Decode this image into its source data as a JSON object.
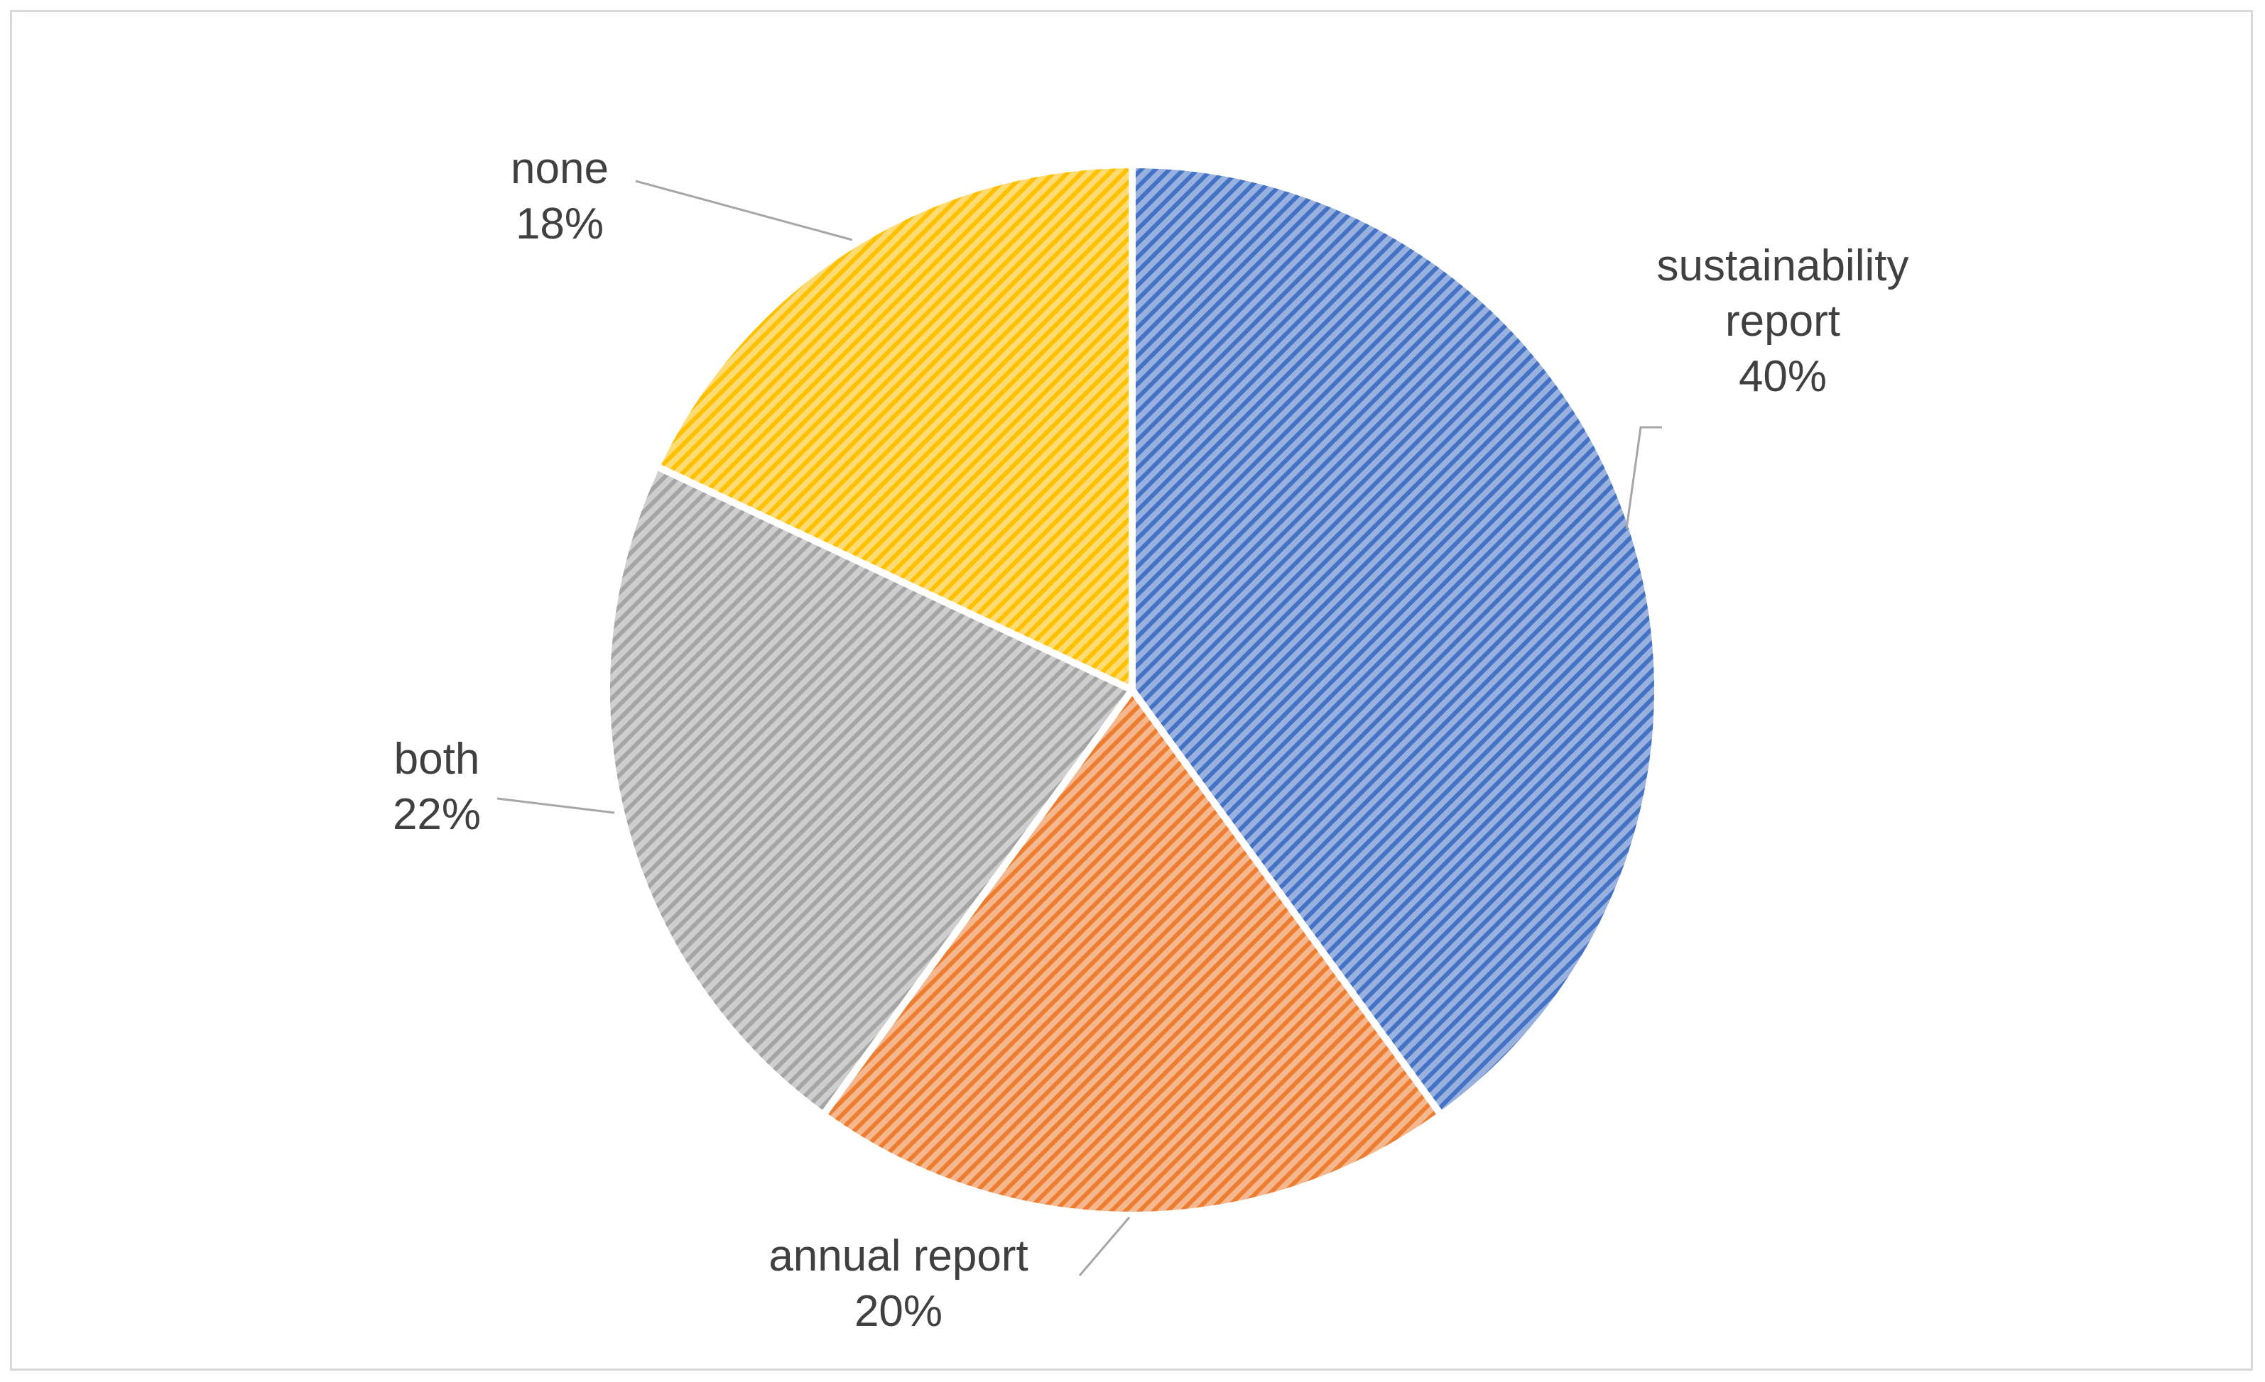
{
  "chart_data": {
    "type": "pie",
    "title": "",
    "start_angle_deg": 0,
    "direction": "clockwise",
    "legend": "none",
    "slices": [
      {
        "name": "sustainability report",
        "label_lines": [
          "sustainability",
          "report"
        ],
        "value": 40,
        "value_label": "40%",
        "color": "#4472c4"
      },
      {
        "name": "annual report",
        "label_lines": [
          "annual report"
        ],
        "value": 20,
        "value_label": "20%",
        "color": "#ed7d31"
      },
      {
        "name": "both",
        "label_lines": [
          "both"
        ],
        "value": 22,
        "value_label": "22%",
        "color": "#a5a5a5"
      },
      {
        "name": "none",
        "label_lines": [
          "none"
        ],
        "value": 18,
        "value_label": "18%",
        "color": "#ffc000"
      }
    ]
  }
}
